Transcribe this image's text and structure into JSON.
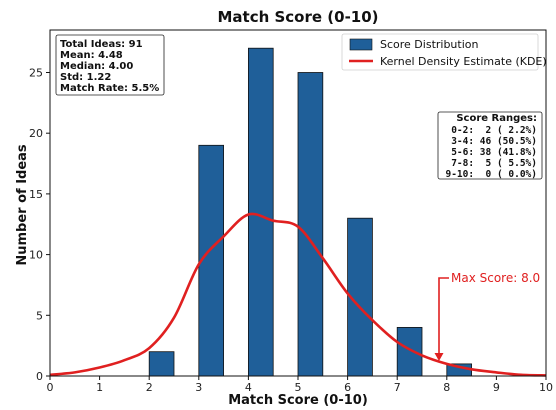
{
  "chart_data": {
    "type": "bar",
    "title": "Match Score (0-10)",
    "xlabel": "Match Score (0-10)",
    "ylabel": "Number of Ideas",
    "xlim": [
      0,
      10
    ],
    "ylim": [
      0,
      28.5
    ],
    "xticks": [
      0,
      1,
      2,
      3,
      4,
      5,
      6,
      7,
      8,
      9,
      10
    ],
    "yticks": [
      0,
      5,
      10,
      15,
      20,
      25
    ],
    "grid": false,
    "legend_position": "top-right",
    "series": [
      {
        "name": "Score Distribution",
        "kind": "bar",
        "color": "#1f5f99",
        "x": [
          2.25,
          3.25,
          4.25,
          5.25,
          6.25,
          7.25,
          8.25
        ],
        "width": 0.5,
        "values": [
          2,
          19,
          27,
          25,
          13,
          4,
          1
        ]
      },
      {
        "name": "Kernel Density Estimate (KDE)",
        "kind": "line",
        "color": "#e02020",
        "x": [
          0,
          0.5,
          1,
          1.5,
          2,
          2.5,
          3,
          3.5,
          4,
          4.5,
          5,
          5.5,
          6,
          6.5,
          7,
          7.5,
          8,
          8.5,
          9,
          9.5,
          10
        ],
        "y": [
          0.1,
          0.3,
          0.7,
          1.3,
          2.3,
          4.8,
          9.2,
          11.5,
          13.3,
          12.8,
          12.3,
          9.7,
          6.8,
          4.6,
          2.8,
          1.7,
          1.0,
          0.55,
          0.3,
          0.1,
          0.05
        ]
      }
    ],
    "stats_box": [
      "Total Ideas: 91",
      "Mean: 4.48",
      "Median: 4.00",
      "Std: 1.22",
      "Match Rate: 5.5%"
    ],
    "ranges_box": {
      "title": "Score Ranges:",
      "lines": [
        "0-2:  2 ( 2.2%)",
        "3-4: 46 (50.5%)",
        "5-6: 38 (41.8%)",
        "7-8:  5 ( 5.5%)",
        "9-10:  0 ( 0.0%)"
      ]
    },
    "annotation": {
      "text": "Max Score: 8.0",
      "x": 8,
      "y": 0,
      "color": "#e02020"
    }
  }
}
